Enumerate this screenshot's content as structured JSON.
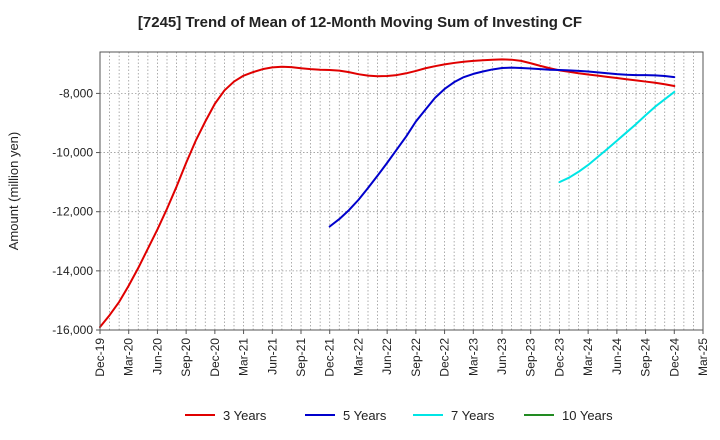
{
  "chart_data": {
    "type": "line",
    "title": "[7245]  Trend of Mean of 12-Month Moving Sum of Investing CF",
    "xlabel": "",
    "ylabel": "Amount (million yen)",
    "x_ticks": [
      "Dec-19",
      "Mar-20",
      "Jun-20",
      "Sep-20",
      "Dec-20",
      "Mar-21",
      "Jun-21",
      "Sep-21",
      "Dec-21",
      "Mar-22",
      "Jun-22",
      "Sep-22",
      "Dec-22",
      "Mar-23",
      "Jun-23",
      "Sep-23",
      "Dec-23",
      "Mar-24",
      "Jun-24",
      "Sep-24",
      "Dec-24",
      "Mar-25"
    ],
    "y_ticks": [
      -16000,
      -14000,
      -12000,
      -10000,
      -8000
    ],
    "y_tick_labels": [
      "-16,000",
      "-14,000",
      "-12,000",
      "-10,000",
      "-8,000"
    ],
    "ylim": [
      -16000,
      -6600
    ],
    "grid": true,
    "legend_position": "bottom",
    "series": [
      {
        "name": "3 Years",
        "color": "#e00000",
        "x": [
          "2019-12",
          "2020-01",
          "2020-02",
          "2020-03",
          "2020-04",
          "2020-05",
          "2020-06",
          "2020-07",
          "2020-08",
          "2020-09",
          "2020-10",
          "2020-11",
          "2020-12",
          "2021-01",
          "2021-02",
          "2021-03",
          "2021-04",
          "2021-05",
          "2021-06",
          "2021-07",
          "2021-08",
          "2021-09",
          "2021-10",
          "2021-11",
          "2021-12",
          "2022-01",
          "2022-02",
          "2022-03",
          "2022-04",
          "2022-05",
          "2022-06",
          "2022-07",
          "2022-08",
          "2022-09",
          "2022-10",
          "2022-11",
          "2022-12",
          "2023-01",
          "2023-02",
          "2023-03",
          "2023-04",
          "2023-05",
          "2023-06",
          "2023-07",
          "2023-08",
          "2023-09",
          "2023-10",
          "2023-11",
          "2023-12",
          "2024-01",
          "2024-02",
          "2024-03",
          "2024-04",
          "2024-05",
          "2024-06",
          "2024-07",
          "2024-08",
          "2024-09",
          "2024-10",
          "2024-11",
          "2024-12"
        ],
        "values": [
          -15900,
          -15500,
          -15050,
          -14500,
          -13900,
          -13250,
          -12600,
          -11900,
          -11150,
          -10350,
          -9600,
          -8950,
          -8350,
          -7900,
          -7600,
          -7400,
          -7280,
          -7180,
          -7120,
          -7100,
          -7110,
          -7150,
          -7180,
          -7200,
          -7210,
          -7230,
          -7280,
          -7350,
          -7400,
          -7420,
          -7410,
          -7380,
          -7320,
          -7240,
          -7150,
          -7080,
          -7020,
          -6970,
          -6930,
          -6900,
          -6880,
          -6860,
          -6850,
          -6860,
          -6900,
          -6980,
          -7070,
          -7150,
          -7220,
          -7270,
          -7320,
          -7360,
          -7400,
          -7440,
          -7480,
          -7520,
          -7560,
          -7600,
          -7640,
          -7690,
          -7750
        ]
      },
      {
        "name": "5 Years",
        "color": "#0000cc",
        "x": [
          "2021-12",
          "2022-01",
          "2022-02",
          "2022-03",
          "2022-04",
          "2022-05",
          "2022-06",
          "2022-07",
          "2022-08",
          "2022-09",
          "2022-10",
          "2022-11",
          "2022-12",
          "2023-01",
          "2023-02",
          "2023-03",
          "2023-04",
          "2023-05",
          "2023-06",
          "2023-07",
          "2023-08",
          "2023-09",
          "2023-10",
          "2023-11",
          "2023-12",
          "2024-01",
          "2024-02",
          "2024-03",
          "2024-04",
          "2024-05",
          "2024-06",
          "2024-07",
          "2024-08",
          "2024-09",
          "2024-10",
          "2024-11",
          "2024-12"
        ],
        "values": [
          -12500,
          -12250,
          -11950,
          -11600,
          -11200,
          -10780,
          -10350,
          -9900,
          -9450,
          -8950,
          -8550,
          -8150,
          -7850,
          -7620,
          -7450,
          -7340,
          -7260,
          -7190,
          -7140,
          -7130,
          -7140,
          -7160,
          -7180,
          -7200,
          -7210,
          -7220,
          -7240,
          -7260,
          -7290,
          -7320,
          -7350,
          -7370,
          -7380,
          -7380,
          -7390,
          -7410,
          -7450
        ]
      },
      {
        "name": "7 Years",
        "color": "#00e5e5",
        "x": [
          "2023-12",
          "2024-01",
          "2024-02",
          "2024-03",
          "2024-04",
          "2024-05",
          "2024-06",
          "2024-07",
          "2024-08",
          "2024-09",
          "2024-10",
          "2024-11",
          "2024-12"
        ],
        "values": [
          -11000,
          -10850,
          -10650,
          -10420,
          -10150,
          -9880,
          -9600,
          -9320,
          -9040,
          -8740,
          -8450,
          -8200,
          -7950
        ]
      },
      {
        "name": "10 Years",
        "color": "#228b22",
        "x": [],
        "values": []
      }
    ]
  }
}
